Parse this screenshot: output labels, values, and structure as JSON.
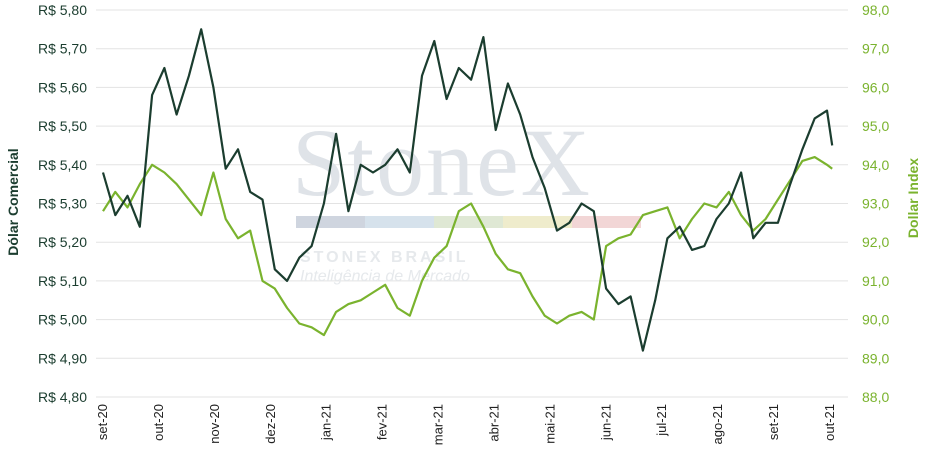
{
  "watermark": {
    "logo": "StoneX",
    "brand": "STONEX BRASIL",
    "tagline": "Inteligência de Mercado",
    "stripe_colors": [
      "#cfd5df",
      "#d6e2ec",
      "#dfe8d4",
      "#efeccc",
      "#f2d6d6"
    ]
  },
  "chart_data": {
    "type": "line",
    "title": "",
    "x_tick_labels": [
      "set-20",
      "out-20",
      "nov-20",
      "dez-20",
      "jan-21",
      "fev-21",
      "mar-21",
      "abr-21",
      "mai-21",
      "jun-21",
      "jul-21",
      "ago-21",
      "set-21",
      "out-21"
    ],
    "y_left": {
      "label": "Dólar Comercial",
      "range": [
        4.8,
        5.8
      ],
      "tick_labels": [
        "R$ 4,80",
        "R$ 4,90",
        "R$ 5,00",
        "R$ 5,10",
        "R$ 5,20",
        "R$ 5,30",
        "R$ 5,40",
        "R$ 5,50",
        "R$ 5,60",
        "R$ 5,70",
        "R$ 5,80"
      ],
      "color": "#1b3d2f"
    },
    "y_right": {
      "label": "Dollar Index",
      "range": [
        88.0,
        98.0
      ],
      "tick_labels": [
        "88,0",
        "89,0",
        "90,0",
        "91,0",
        "92,0",
        "93,0",
        "94,0",
        "95,0",
        "96,0",
        "97,0",
        "98,0"
      ],
      "color": "#7ab32e"
    },
    "grid": "horizontal",
    "legend": "none",
    "series": [
      {
        "axis": "left",
        "color": "#1b3d2f",
        "x": [
          "2020-09-01",
          "2020-09-08",
          "2020-09-15",
          "2020-09-22",
          "2020-09-29",
          "2020-10-06",
          "2020-10-13",
          "2020-10-20",
          "2020-10-27",
          "2020-11-03",
          "2020-11-10",
          "2020-11-17",
          "2020-11-24",
          "2020-12-01",
          "2020-12-08",
          "2020-12-15",
          "2020-12-22",
          "2020-12-29",
          "2021-01-05",
          "2021-01-12",
          "2021-01-19",
          "2021-01-26",
          "2021-02-02",
          "2021-02-09",
          "2021-02-16",
          "2021-02-23",
          "2021-03-02",
          "2021-03-09",
          "2021-03-16",
          "2021-03-23",
          "2021-03-30",
          "2021-04-06",
          "2021-04-13",
          "2021-04-20",
          "2021-04-27",
          "2021-05-04",
          "2021-05-11",
          "2021-05-18",
          "2021-05-25",
          "2021-06-01",
          "2021-06-08",
          "2021-06-15",
          "2021-06-22",
          "2021-06-29",
          "2021-07-06",
          "2021-07-13",
          "2021-07-20",
          "2021-07-27",
          "2021-08-03",
          "2021-08-10",
          "2021-08-17",
          "2021-08-24",
          "2021-08-31",
          "2021-09-07",
          "2021-09-14",
          "2021-09-21",
          "2021-09-28",
          "2021-10-05",
          "2021-10-12",
          "2021-10-19",
          "2021-10-22"
        ],
        "values": [
          5.38,
          5.27,
          5.32,
          5.24,
          5.58,
          5.65,
          5.53,
          5.63,
          5.75,
          5.6,
          5.39,
          5.44,
          5.33,
          5.31,
          5.13,
          5.1,
          5.16,
          5.19,
          5.3,
          5.48,
          5.28,
          5.4,
          5.38,
          5.4,
          5.44,
          5.38,
          5.63,
          5.72,
          5.57,
          5.65,
          5.62,
          5.73,
          5.49,
          5.61,
          5.53,
          5.42,
          5.34,
          5.23,
          5.25,
          5.3,
          5.28,
          5.08,
          5.04,
          5.06,
          4.92,
          5.05,
          5.21,
          5.24,
          5.18,
          5.19,
          5.26,
          5.3,
          5.38,
          5.21,
          5.25,
          5.25,
          5.35,
          5.44,
          5.52,
          5.54,
          5.45
        ]
      },
      {
        "axis": "right",
        "color": "#7ab32e",
        "x": [
          "2020-09-01",
          "2020-09-08",
          "2020-09-15",
          "2020-09-22",
          "2020-09-29",
          "2020-10-06",
          "2020-10-13",
          "2020-10-20",
          "2020-10-27",
          "2020-11-03",
          "2020-11-10",
          "2020-11-17",
          "2020-11-24",
          "2020-12-01",
          "2020-12-08",
          "2020-12-15",
          "2020-12-22",
          "2020-12-29",
          "2021-01-05",
          "2021-01-12",
          "2021-01-19",
          "2021-01-26",
          "2021-02-02",
          "2021-02-09",
          "2021-02-16",
          "2021-02-23",
          "2021-03-02",
          "2021-03-09",
          "2021-03-16",
          "2021-03-23",
          "2021-03-30",
          "2021-04-06",
          "2021-04-13",
          "2021-04-20",
          "2021-04-27",
          "2021-05-04",
          "2021-05-11",
          "2021-05-18",
          "2021-05-25",
          "2021-06-01",
          "2021-06-08",
          "2021-06-15",
          "2021-06-22",
          "2021-06-29",
          "2021-07-06",
          "2021-07-13",
          "2021-07-20",
          "2021-07-27",
          "2021-08-03",
          "2021-08-10",
          "2021-08-17",
          "2021-08-24",
          "2021-08-31",
          "2021-09-07",
          "2021-09-14",
          "2021-09-21",
          "2021-09-28",
          "2021-10-05",
          "2021-10-12",
          "2021-10-19",
          "2021-10-22"
        ],
        "values": [
          92.8,
          93.3,
          92.9,
          93.5,
          94.0,
          93.8,
          93.5,
          93.1,
          92.7,
          93.8,
          92.6,
          92.1,
          92.3,
          91.0,
          90.8,
          90.3,
          89.9,
          89.8,
          89.6,
          90.2,
          90.4,
          90.5,
          90.7,
          90.9,
          90.3,
          90.1,
          91.0,
          91.6,
          91.9,
          92.8,
          93.0,
          92.4,
          91.7,
          91.3,
          91.2,
          90.6,
          90.1,
          89.9,
          90.1,
          90.2,
          90.0,
          91.9,
          92.1,
          92.2,
          92.7,
          92.8,
          92.9,
          92.1,
          92.6,
          93.0,
          92.9,
          93.3,
          92.7,
          92.3,
          92.6,
          93.1,
          93.6,
          94.1,
          94.2,
          94.0,
          93.9
        ]
      }
    ]
  }
}
